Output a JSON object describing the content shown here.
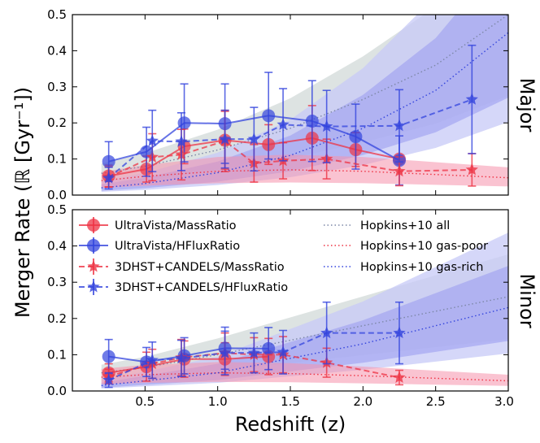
{
  "chart_data": {
    "type": "line",
    "xlabel": "Redshift (z)",
    "ylabel": "Merger Rate (ℝ [Gyr⁻¹])",
    "xlim": [
      0.0,
      3.0
    ],
    "ylim": [
      0.0,
      0.5
    ],
    "x_tick_labels": [
      "0.5",
      "1.0",
      "1.5",
      "2.0",
      "2.5",
      "3.0"
    ],
    "y_tick_labels": [
      "0.0",
      "0.1",
      "0.2",
      "0.3",
      "0.4",
      "0.5"
    ],
    "colors": {
      "red": "#ee3344",
      "blue": "#3344dd",
      "red_band": "#f591ac",
      "blue_band": "#9d9ff0",
      "blue_band_light": "#c7c9f7",
      "gray_band": "#dde3e2",
      "all_line": "#7c87a6"
    },
    "legend": [
      {
        "label": "UltraVista/MassRatio",
        "style": "solid-circle-red"
      },
      {
        "label": "UltraVista/HFluxRatio",
        "style": "solid-circle-blue"
      },
      {
        "label": "3DHST+CANDELS/MassRatio",
        "style": "dashed-star-red"
      },
      {
        "label": "3DHST+CANDELS/HFluxRatio",
        "style": "dashed-star-blue"
      },
      {
        "label": "Hopkins+10 all",
        "style": "dotted-gray"
      },
      {
        "label": "Hopkins+10 gas-poor",
        "style": "dotted-red"
      },
      {
        "label": "Hopkins+10 gas-rich",
        "style": "dotted-blue"
      }
    ],
    "panels": [
      {
        "label": "Major",
        "series": [
          {
            "name": "UltraVista/MassRatio",
            "x": [
              0.25,
              0.51,
              0.77,
              1.05,
              1.35,
              1.65,
              1.95,
              2.25
            ],
            "y": [
              0.053,
              0.072,
              0.135,
              0.152,
              0.14,
              0.158,
              0.126,
              0.1
            ],
            "yerr": [
              0.03,
              0.036,
              0.048,
              0.08,
              0.055,
              0.09,
              0.047,
              0.0
            ]
          },
          {
            "name": "UltraVista/HFluxRatio",
            "x": [
              0.25,
              0.51,
              0.77,
              1.05,
              1.35,
              1.65,
              1.95,
              2.25
            ],
            "y": [
              0.093,
              0.12,
              0.2,
              0.198,
              0.22,
              0.205,
              0.162,
              0.096
            ],
            "yerr": [
              0.055,
              0.068,
              0.108,
              0.11,
              0.12,
              0.112,
              0.09,
              0.068
            ]
          },
          {
            "name": "3DHST+CANDELS/MassRatio",
            "x": [
              0.25,
              0.55,
              0.75,
              1.05,
              1.25,
              1.45,
              1.75,
              2.25,
              2.75
            ],
            "y": [
              0.05,
              0.105,
              0.112,
              0.15,
              0.088,
              0.095,
              0.1,
              0.066,
              0.07
            ],
            "yerr": [
              0.028,
              0.065,
              0.07,
              0.085,
              0.052,
              0.05,
              0.055,
              0.04,
              0.045
            ]
          },
          {
            "name": "3DHST+CANDELS/HFluxRatio",
            "x": [
              0.25,
              0.55,
              0.75,
              1.05,
              1.25,
              1.45,
              1.75,
              2.25,
              2.75
            ],
            "y": [
              0.047,
              0.15,
              0.148,
              0.155,
              0.155,
              0.195,
              0.19,
              0.192,
              0.265
            ],
            "yerr": [
              0.03,
              0.085,
              0.08,
              0.08,
              0.088,
              0.1,
              0.1,
              0.1,
              0.15
            ]
          }
        ],
        "models": {
          "all": {
            "x": [
              0.2,
              0.5,
              1.0,
              1.5,
              2.0,
              2.5,
              3.0
            ],
            "y": [
              0.06,
              0.08,
              0.125,
              0.185,
              0.265,
              0.36,
              0.5
            ]
          },
          "gas_poor": {
            "x": [
              0.2,
              0.5,
              1.0,
              1.5,
              2.0,
              2.5,
              3.0
            ],
            "y": [
              0.04,
              0.052,
              0.066,
              0.07,
              0.066,
              0.057,
              0.048
            ]
          },
          "gas_rich": {
            "x": [
              0.2,
              0.5,
              1.0,
              1.5,
              2.0,
              2.5,
              3.0
            ],
            "y": [
              0.02,
              0.032,
              0.062,
              0.11,
              0.185,
              0.29,
              0.45
            ]
          }
        }
      },
      {
        "label": "Minor",
        "series": [
          {
            "name": "UltraVista/MassRatio",
            "x": [
              0.25,
              0.51,
              0.77,
              1.05,
              1.35
            ],
            "y": [
              0.05,
              0.067,
              0.088,
              0.088,
              0.095
            ],
            "yerr": [
              0.025,
              0.04,
              0.05,
              0.045,
              0.05
            ]
          },
          {
            "name": "UltraVista/HFluxRatio",
            "x": [
              0.25,
              0.51,
              0.77,
              1.05,
              1.35
            ],
            "y": [
              0.095,
              0.08,
              0.097,
              0.118,
              0.117
            ],
            "yerr": [
              0.047,
              0.04,
              0.05,
              0.058,
              0.058
            ]
          },
          {
            "name": "3DHST+CANDELS/MassRatio",
            "x": [
              0.25,
              0.55,
              0.75,
              1.05,
              1.25,
              1.45,
              1.75,
              2.25
            ],
            "y": [
              0.04,
              0.075,
              0.092,
              0.105,
              0.1,
              0.1,
              0.078,
              0.037
            ],
            "yerr": [
              0.02,
              0.04,
              0.05,
              0.055,
              0.047,
              0.05,
              0.04,
              0.02
            ]
          },
          {
            "name": "3DHST+CANDELS/HFluxRatio",
            "x": [
              0.25,
              0.55,
              0.75,
              1.05,
              1.25,
              1.45,
              1.75,
              2.25
            ],
            "y": [
              0.03,
              0.085,
              0.09,
              0.105,
              0.105,
              0.107,
              0.16,
              0.16
            ],
            "yerr": [
              0.02,
              0.05,
              0.05,
              0.06,
              0.055,
              0.06,
              0.085,
              0.085
            ]
          }
        ],
        "models": {
          "all": {
            "x": [
              0.2,
              0.5,
              1.0,
              1.5,
              2.0,
              2.5,
              3.0
            ],
            "y": [
              0.05,
              0.065,
              0.1,
              0.14,
              0.18,
              0.22,
              0.26
            ]
          },
          "gas_poor": {
            "x": [
              0.2,
              0.5,
              1.0,
              1.5,
              2.0,
              2.5,
              3.0
            ],
            "y": [
              0.038,
              0.045,
              0.05,
              0.048,
              0.042,
              0.035,
              0.028
            ]
          },
          "gas_rich": {
            "x": [
              0.2,
              0.5,
              1.0,
              1.5,
              2.0,
              2.5,
              3.0
            ],
            "y": [
              0.015,
              0.028,
              0.05,
              0.09,
              0.13,
              0.18,
              0.23
            ]
          }
        }
      }
    ]
  }
}
